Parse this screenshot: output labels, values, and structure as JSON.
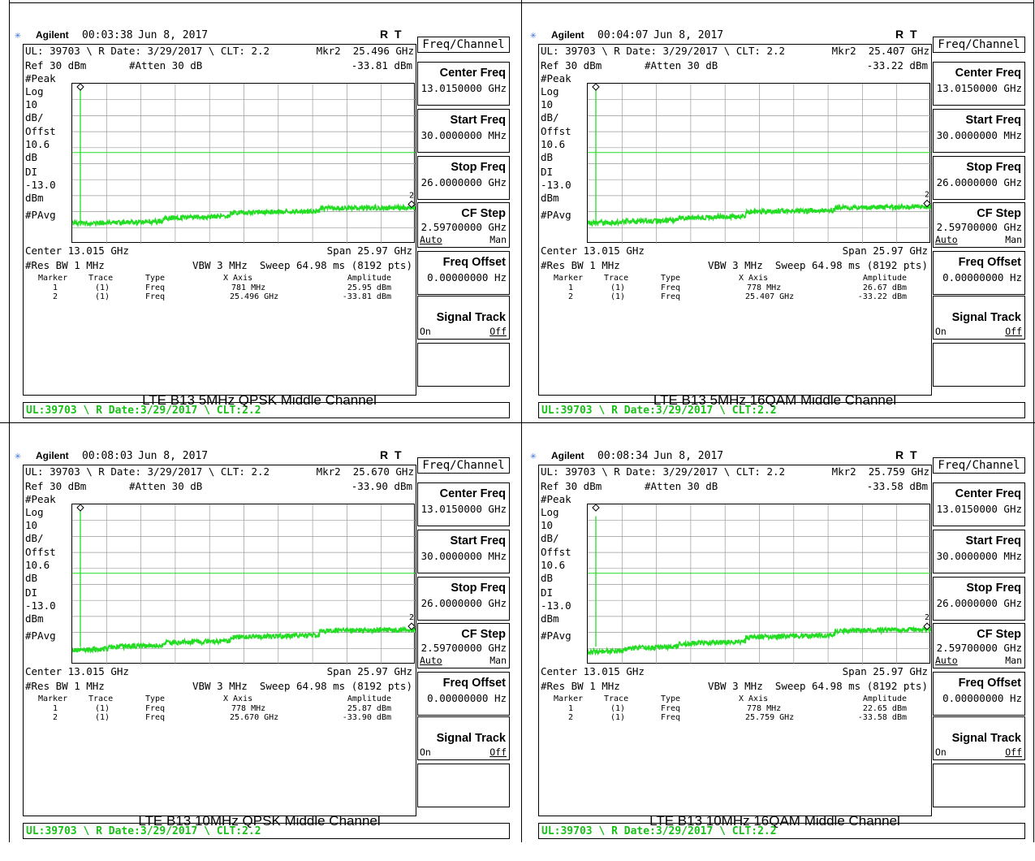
{
  "panels": [
    {
      "id": "p1",
      "header": {
        "logo": "✳",
        "brand": "Agilent",
        "time": "00:03:38",
        "date": "Jun 8, 2017",
        "rt": "R T"
      },
      "info_line": "UL: 39703 \\ R Date: 3/29/2017 \\ CLT: 2.2",
      "mkr_line": "Mkr2  25.496 GHz",
      "mkr_amp": "-33.81 dBm",
      "ref": "Ref 30 dBm",
      "atten": "#Atten 30 dB",
      "left_labels": [
        "#Peak",
        "Log",
        "10",
        "dB/",
        "Offst",
        "10.6",
        "dB",
        "DI",
        "-13.0",
        "dBm",
        "#PAvg"
      ],
      "center": "Center 13.015 GHz",
      "span": "Span 25.97 GHz",
      "res_bw": "#Res BW 1 MHz",
      "vbw": "VBW 3 MHz",
      "sweep": "Sweep 64.98 ms (8192 pts)",
      "table_headers": [
        "Marker",
        "Trace",
        "Type",
        "X Axis",
        "Amplitude"
      ],
      "table_rows": [
        [
          "1",
          "(1)",
          "Freq",
          "781 MHz",
          "25.95 dBm"
        ],
        [
          "2",
          "(1)",
          "Freq",
          "25.496 GHz",
          "-33.81 dBm"
        ]
      ],
      "status": "UL:39703 \\ R Date:3/29/2017 \\ CLT:2.2",
      "caption": "LTE B13 5MHz QPSK Middle Channel",
      "marker_label": "2",
      "steps": [
        [
          0,
          0.16
        ],
        [
          0.105,
          0.16
        ],
        [
          0.265,
          0.19
        ],
        [
          0.46,
          0.225
        ],
        [
          0.72,
          0.25
        ],
        [
          1.0,
          0.27
        ]
      ]
    },
    {
      "id": "p2",
      "header": {
        "logo": "✳",
        "brand": "Agilent",
        "time": "00:04:07",
        "date": "Jun 8, 2017",
        "rt": "R T"
      },
      "info_line": "UL: 39703 \\ R Date: 3/29/2017 \\ CLT: 2.2",
      "mkr_line": "Mkr2  25.407 GHz",
      "mkr_amp": "-33.22 dBm",
      "ref": "Ref 30 dBm",
      "atten": "#Atten 30 dB",
      "left_labels": [
        "#Peak",
        "Log",
        "10",
        "dB/",
        "Offst",
        "10.6",
        "dB",
        "DI",
        "-13.0",
        "dBm",
        "#PAvg"
      ],
      "center": "Center 13.015 GHz",
      "span": "Span 25.97 GHz",
      "res_bw": "#Res BW 1 MHz",
      "vbw": "VBW 3 MHz",
      "sweep": "Sweep 64.98 ms (8192 pts)",
      "table_headers": [
        "Marker",
        "Trace",
        "Type",
        "X Axis",
        "Amplitude"
      ],
      "table_rows": [
        [
          "1",
          "(1)",
          "Freq",
          "778 MHz",
          "26.67 dBm"
        ],
        [
          "2",
          "(1)",
          "Freq",
          "25.407 GHz",
          "-33.22 dBm"
        ]
      ],
      "status": "UL:39703 \\ R Date:3/29/2017 \\ CLT:2.2",
      "caption": "LTE B13 5MHz 16QAM Middle Channel",
      "marker_label": "2",
      "steps": [
        [
          0,
          0.16
        ],
        [
          0.105,
          0.17
        ],
        [
          0.265,
          0.19
        ],
        [
          0.46,
          0.23
        ],
        [
          0.72,
          0.255
        ],
        [
          1.0,
          0.275
        ]
      ]
    },
    {
      "id": "p3",
      "header": {
        "logo": "✳",
        "brand": "Agilent",
        "time": "00:08:03",
        "date": "Jun 8, 2017",
        "rt": "R T"
      },
      "info_line": "UL: 39703 \\ R Date: 3/29/2017 \\ CLT: 2.2",
      "mkr_line": "Mkr2  25.670 GHz",
      "mkr_amp": "-33.90 dBm",
      "ref": "Ref 30 dBm",
      "atten": "#Atten 30 dB",
      "left_labels": [
        "#Peak",
        "Log",
        "10",
        "dB/",
        "Offst",
        "10.6",
        "dB",
        "DI",
        "-13.0",
        "dBm",
        "#PAvg"
      ],
      "center": "Center 13.015 GHz",
      "span": "Span 25.97 GHz",
      "res_bw": "#Res BW 1 MHz",
      "vbw": "VBW 3 MHz",
      "sweep": "Sweep 64.98 ms (8192 pts)",
      "table_headers": [
        "Marker",
        "Trace",
        "Type",
        "X Axis",
        "Amplitude"
      ],
      "table_rows": [
        [
          "1",
          "(1)",
          "Freq",
          "778 MHz",
          "25.87 dBm"
        ],
        [
          "2",
          "(1)",
          "Freq",
          "25.670 GHz",
          "-33.90 dBm"
        ]
      ],
      "status": "UL:39703 \\ R Date:3/29/2017 \\ CLT:2.2",
      "caption": "LTE B13 10MHz QPSK Middle Channel",
      "marker_label": "2",
      "steps": [
        [
          0,
          0.12
        ],
        [
          0.105,
          0.14
        ],
        [
          0.265,
          0.165
        ],
        [
          0.46,
          0.2
        ],
        [
          0.72,
          0.24
        ],
        [
          1.0,
          0.265
        ]
      ]
    },
    {
      "id": "p4",
      "header": {
        "logo": "✳",
        "brand": "Agilent",
        "time": "00:08:34",
        "date": "Jun 8, 2017",
        "rt": "R T"
      },
      "info_line": "UL: 39703 \\ R Date: 3/29/2017 \\ CLT: 2.2",
      "mkr_line": "Mkr2  25.759 GHz",
      "mkr_amp": "-33.58 dBm",
      "ref": "Ref 30 dBm",
      "atten": "#Atten 30 dB",
      "left_labels": [
        "#Peak",
        "Log",
        "10",
        "dB/",
        "Offst",
        "10.6",
        "dB",
        "DI",
        "-13.0",
        "dBm",
        "#PAvg"
      ],
      "center": "Center 13.015 GHz",
      "span": "Span 25.97 GHz",
      "res_bw": "#Res BW 1 MHz",
      "vbw": "VBW 3 MHz",
      "sweep": "Sweep 64.98 ms (8192 pts)",
      "table_headers": [
        "Marker",
        "Trace",
        "Type",
        "X Axis",
        "Amplitude"
      ],
      "table_rows": [
        [
          "1",
          "(1)",
          "Freq",
          "778 MHz",
          "22.65 dBm"
        ],
        [
          "2",
          "(1)",
          "Freq",
          "25.759 GHz",
          "-33.58 dBm"
        ]
      ],
      "status": "UL:39703 \\ R Date:3/29/2017 \\ CLT:2.2",
      "caption": "LTE B13 10MHz 16QAM Middle Channel",
      "marker_label": "2",
      "steps": [
        [
          0,
          0.11
        ],
        [
          0.105,
          0.13
        ],
        [
          0.265,
          0.16
        ],
        [
          0.46,
          0.2
        ],
        [
          0.72,
          0.24
        ],
        [
          1.0,
          0.265
        ]
      ]
    }
  ],
  "menu": {
    "title": "Freq/Channel",
    "keys": [
      {
        "label": "Center Freq",
        "value": "13.0150000 GHz"
      },
      {
        "label": "Start Freq",
        "value": "30.0000000 MHz"
      },
      {
        "label": "Stop Freq",
        "value": "26.0000000 GHz"
      },
      {
        "label": "CF Step",
        "value": "2.59700000 GHz",
        "auto": "Auto",
        "man": "Man"
      },
      {
        "label": "Freq Offset",
        "value": "0.00000000  Hz"
      },
      {
        "label": "Signal Track",
        "on": "On",
        "off": "Off"
      }
    ]
  },
  "colors": {
    "trace": "#22dd22",
    "status_text": "#18c018",
    "logo": "#3a6fd8"
  },
  "chart_data": [
    {
      "type": "line",
      "title": "LTE B13 5MHz QPSK Middle Channel",
      "x_range_ghz": [
        0.03,
        26.0
      ],
      "ylabel": "dBm",
      "display_line_dbm": -13.0,
      "markers": [
        {
          "x": "781 MHz",
          "y": 25.95
        },
        {
          "x": "25.496 GHz",
          "y": -33.81
        }
      ]
    },
    {
      "type": "line",
      "title": "LTE B13 5MHz 16QAM Middle Channel",
      "x_range_ghz": [
        0.03,
        26.0
      ],
      "ylabel": "dBm",
      "display_line_dbm": -13.0,
      "markers": [
        {
          "x": "778 MHz",
          "y": 26.67
        },
        {
          "x": "25.407 GHz",
          "y": -33.22
        }
      ]
    },
    {
      "type": "line",
      "title": "LTE B13 10MHz QPSK Middle Channel",
      "x_range_ghz": [
        0.03,
        26.0
      ],
      "ylabel": "dBm",
      "display_line_dbm": -13.0,
      "markers": [
        {
          "x": "778 MHz",
          "y": 25.87
        },
        {
          "x": "25.670 GHz",
          "y": -33.9
        }
      ]
    },
    {
      "type": "line",
      "title": "LTE B13 10MHz 16QAM Middle Channel",
      "x_range_ghz": [
        0.03,
        26.0
      ],
      "ylabel": "dBm",
      "display_line_dbm": -13.0,
      "markers": [
        {
          "x": "778 MHz",
          "y": 22.65
        },
        {
          "x": "25.759 GHz",
          "y": -33.58
        }
      ]
    }
  ]
}
